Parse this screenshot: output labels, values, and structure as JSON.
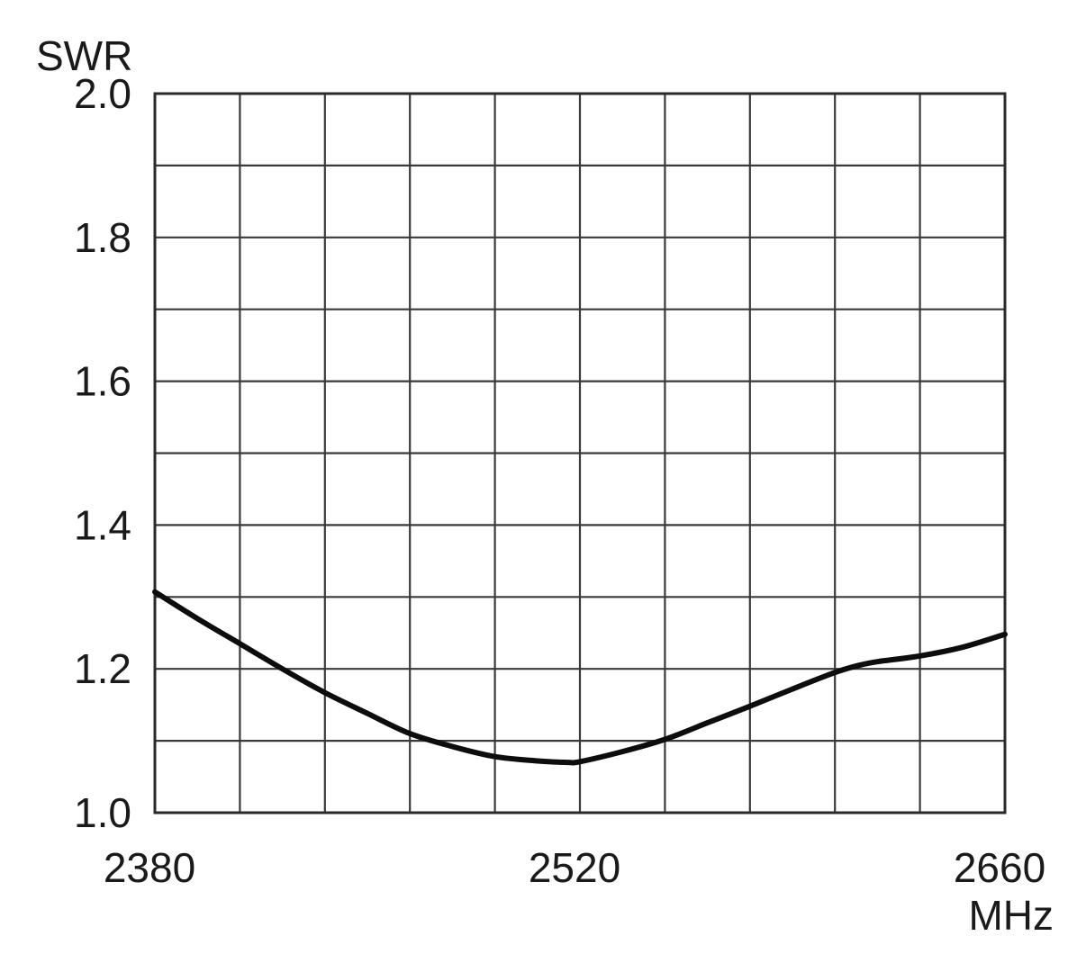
{
  "chart_data": {
    "type": "line",
    "title": "",
    "ylabel": "SWR",
    "xlabel": "MHz",
    "xlim": [
      2380,
      2660
    ],
    "ylim": [
      1.0,
      2.0
    ],
    "x_grid_step": 28,
    "y_grid_step": 0.1,
    "x_ticks": [
      2380,
      2520,
      2660
    ],
    "x_tick_labels": [
      "2380",
      "2520",
      "2660"
    ],
    "y_ticks": [
      1.0,
      1.2,
      1.4,
      1.6,
      1.8,
      2.0
    ],
    "y_tick_labels": [
      "1.0",
      "1.2",
      "1.4",
      "1.6",
      "1.8",
      "2.0"
    ],
    "grid": true,
    "series": [
      {
        "x": [
          2380,
          2394,
          2408,
          2422,
          2436,
          2450,
          2464,
          2478,
          2492,
          2506,
          2516,
          2520,
          2534,
          2548,
          2562,
          2576,
          2590,
          2604,
          2612,
          2618,
          2632,
          2646,
          2660
        ],
        "y": [
          1.307,
          1.27,
          1.235,
          1.2,
          1.167,
          1.138,
          1.11,
          1.092,
          1.078,
          1.072,
          1.07,
          1.071,
          1.085,
          1.102,
          1.125,
          1.148,
          1.172,
          1.195,
          1.205,
          1.21,
          1.218,
          1.23,
          1.248
        ],
        "color": "#0d0d0d"
      }
    ]
  }
}
